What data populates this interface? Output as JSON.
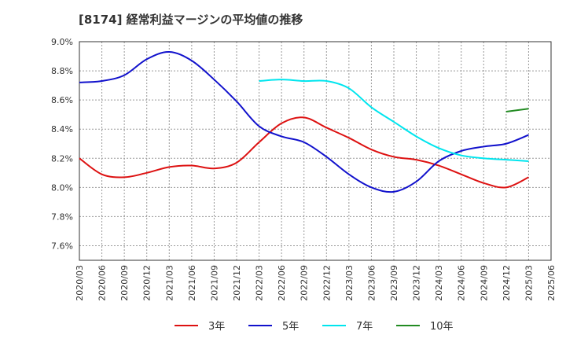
{
  "chart_data": {
    "type": "line",
    "title": "[8174]  経常利益マージンの平均値の推移",
    "xlabel": "",
    "ylabel": "",
    "ylim": [
      7.5,
      9.0
    ],
    "y_ticks": [
      "9.0%",
      "8.8%",
      "8.6%",
      "8.4%",
      "8.2%",
      "8.0%",
      "7.8%",
      "7.6%"
    ],
    "x_ticks": [
      "2020/03",
      "2020/06",
      "2020/09",
      "2020/12",
      "2021/03",
      "2021/06",
      "2021/09",
      "2021/12",
      "2022/03",
      "2022/06",
      "2022/09",
      "2022/12",
      "2023/03",
      "2023/06",
      "2023/09",
      "2023/12",
      "2024/03",
      "2024/06",
      "2024/09",
      "2024/12",
      "2025/03",
      "2025/06"
    ],
    "grid": true,
    "legend_position": "bottom",
    "series": [
      {
        "name": "3年",
        "color": "#dd1111",
        "points": [
          [
            "2020/03",
            8.2
          ],
          [
            "2020/06",
            8.09
          ],
          [
            "2020/09",
            8.07
          ],
          [
            "2020/12",
            8.1
          ],
          [
            "2021/03",
            8.14
          ],
          [
            "2021/06",
            8.15
          ],
          [
            "2021/09",
            8.13
          ],
          [
            "2021/12",
            8.17
          ],
          [
            "2022/03",
            8.31
          ],
          [
            "2022/06",
            8.44
          ],
          [
            "2022/09",
            8.48
          ],
          [
            "2022/12",
            8.41
          ],
          [
            "2023/03",
            8.34
          ],
          [
            "2023/06",
            8.26
          ],
          [
            "2023/09",
            8.21
          ],
          [
            "2023/12",
            8.19
          ],
          [
            "2024/03",
            8.15
          ],
          [
            "2024/06",
            8.09
          ],
          [
            "2024/09",
            8.03
          ],
          [
            "2024/12",
            8.0
          ],
          [
            "2025/03",
            8.07
          ]
        ]
      },
      {
        "name": "5年",
        "color": "#1111cc",
        "points": [
          [
            "2020/03",
            8.72
          ],
          [
            "2020/06",
            8.73
          ],
          [
            "2020/09",
            8.77
          ],
          [
            "2020/12",
            8.88
          ],
          [
            "2021/03",
            8.93
          ],
          [
            "2021/06",
            8.87
          ],
          [
            "2021/09",
            8.74
          ],
          [
            "2021/12",
            8.59
          ],
          [
            "2022/03",
            8.42
          ],
          [
            "2022/06",
            8.35
          ],
          [
            "2022/09",
            8.31
          ],
          [
            "2022/12",
            8.21
          ],
          [
            "2023/03",
            8.09
          ],
          [
            "2023/06",
            8.0
          ],
          [
            "2023/09",
            7.97
          ],
          [
            "2023/12",
            8.04
          ],
          [
            "2024/03",
            8.18
          ],
          [
            "2024/06",
            8.25
          ],
          [
            "2024/09",
            8.28
          ],
          [
            "2024/12",
            8.3
          ],
          [
            "2025/03",
            8.36
          ]
        ]
      },
      {
        "name": "7年",
        "color": "#00e5ee",
        "points": [
          [
            "2022/03",
            8.73
          ],
          [
            "2022/06",
            8.74
          ],
          [
            "2022/09",
            8.73
          ],
          [
            "2022/12",
            8.73
          ],
          [
            "2023/03",
            8.68
          ],
          [
            "2023/06",
            8.55
          ],
          [
            "2023/09",
            8.45
          ],
          [
            "2023/12",
            8.35
          ],
          [
            "2024/03",
            8.27
          ],
          [
            "2024/06",
            8.22
          ],
          [
            "2024/09",
            8.2
          ],
          [
            "2024/12",
            8.19
          ],
          [
            "2025/03",
            8.18
          ]
        ]
      },
      {
        "name": "10年",
        "color": "#228b22",
        "points": [
          [
            "2024/12",
            8.52
          ],
          [
            "2025/03",
            8.54
          ]
        ]
      }
    ]
  }
}
